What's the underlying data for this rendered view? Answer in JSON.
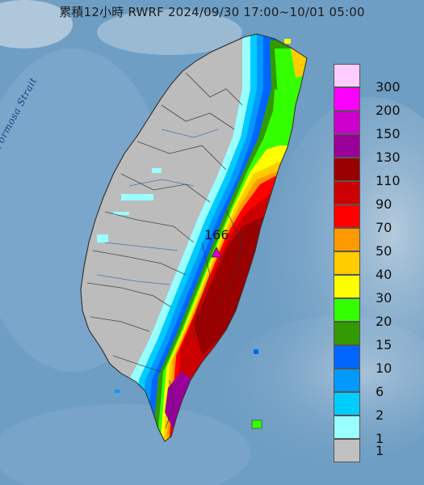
{
  "title": "累積12小時 RWRF 2024/09/30 17:00~10/01 05:00",
  "strait_label": "Formosa Strait",
  "max_value": "166",
  "legend": [
    {
      "label": "300",
      "color": "#ffccff"
    },
    {
      "label": "200",
      "color": "#ff00ff"
    },
    {
      "label": "150",
      "color": "#cc00cc"
    },
    {
      "label": "130",
      "color": "#990099"
    },
    {
      "label": "110",
      "color": "#990000"
    },
    {
      "label": "90",
      "color": "#cc0000"
    },
    {
      "label": "70",
      "color": "#ff0000"
    },
    {
      "label": "50",
      "color": "#ff9900"
    },
    {
      "label": "40",
      "color": "#ffcc00"
    },
    {
      "label": "30",
      "color": "#ffff00"
    },
    {
      "label": "20",
      "color": "#33ff00"
    },
    {
      "label": "15",
      "color": "#339900"
    },
    {
      "label": "10",
      "color": "#0066ff"
    },
    {
      "label": "6",
      "color": "#0099ff"
    },
    {
      "label": "2",
      "color": "#00ccff"
    },
    {
      "label": "1",
      "color": "#99ffff"
    },
    {
      "label": "",
      "color": "#c0c0c0"
    }
  ]
}
